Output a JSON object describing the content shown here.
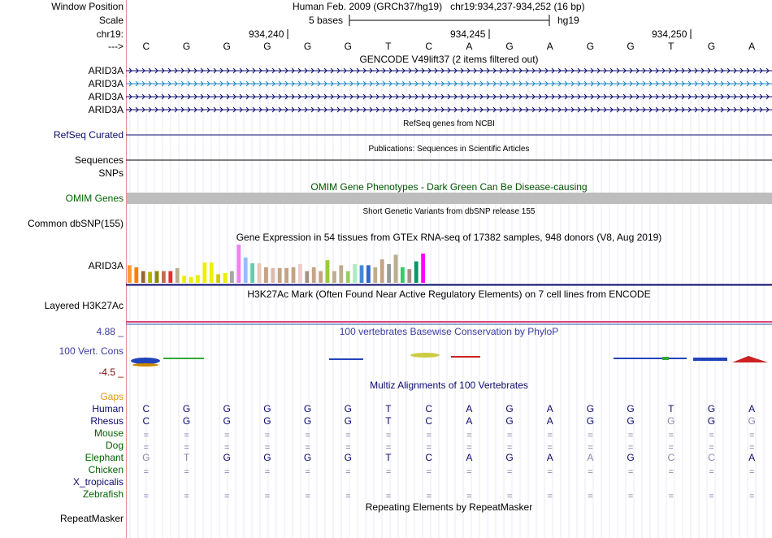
{
  "header": {
    "window_position_label": "Window Position",
    "scale_label": "Scale",
    "chrom_label": "chr19:",
    "strand_label": "--->",
    "assembly": "Human Feb. 2009 (GRCh37/hg19)",
    "position": "chr19:934,237-934,252 (16 bp)",
    "scale_text": "5 bases",
    "db": "hg19",
    "ticks": [
      "934,240",
      "934,245",
      "934,250"
    ],
    "bases": [
      "C",
      "G",
      "G",
      "G",
      "G",
      "G",
      "T",
      "C",
      "A",
      "G",
      "A",
      "G",
      "G",
      "T",
      "G",
      "A"
    ]
  },
  "gencode": {
    "title": "GENCODE V49lift37 (2 items filtered out)",
    "items": [
      {
        "label": "ARID3A",
        "color": "#0a0a6e"
      },
      {
        "label": "ARID3A",
        "color": "#1a85c5"
      },
      {
        "label": "ARID3A",
        "color": "#0a0a6e"
      },
      {
        "label": "ARID3A",
        "color": "#0a0a6e"
      }
    ]
  },
  "refseq": {
    "label": "RefSeq Curated",
    "title": "RefSeq genes from NCBI"
  },
  "publications": {
    "label": "Sequences",
    "title": "Publications: Sequences in Scientific Articles"
  },
  "snps": {
    "label": "SNPs"
  },
  "omim": {
    "label": "OMIM Genes",
    "title": "OMIM Gene Phenotypes - Dark Green Can Be Disease-causing"
  },
  "dbsnp": {
    "label": "Common dbSNP(155)",
    "title": "Short Genetic Variants from dbSNP release 155"
  },
  "gtex": {
    "label": "ARID3A",
    "title": "Gene Expression in 54 tissues from GTEx RNA-seq of 17382 samples, 948 donors (V8, Aug 2019)",
    "bars": [
      {
        "color": "#ff9933",
        "value": 0.45
      },
      {
        "color": "#ff7f00",
        "value": 0.4
      },
      {
        "color": "#996633",
        "value": 0.3
      },
      {
        "color": "#b3b300",
        "value": 0.28
      },
      {
        "color": "#8c8c00",
        "value": 0.3
      },
      {
        "color": "#c76b53",
        "value": 0.3
      },
      {
        "color": "#e62e2e",
        "value": 0.3
      },
      {
        "color": "#bcae8c",
        "value": 0.38
      },
      {
        "color": "#eeee00",
        "value": 0.18
      },
      {
        "color": "#eeee00",
        "value": 0.15
      },
      {
        "color": "#eeee00",
        "value": 0.2
      },
      {
        "color": "#eeee00",
        "value": 0.52
      },
      {
        "color": "#eeee00",
        "value": 0.52
      },
      {
        "color": "#cccc00",
        "value": 0.22
      },
      {
        "color": "#eeee00",
        "value": 0.25
      },
      {
        "color": "#a6a6a6",
        "value": 0.3
      },
      {
        "color": "#ee82ee",
        "value": 0.98
      },
      {
        "color": "#99bbff",
        "value": 0.65
      },
      {
        "color": "#66cdaa",
        "value": 0.5
      },
      {
        "color": "#e8c8b8",
        "value": 0.5
      },
      {
        "color": "#c4a484",
        "value": 0.4
      },
      {
        "color": "#ddbbaa",
        "value": 0.38
      },
      {
        "color": "#c4a484",
        "value": 0.38
      },
      {
        "color": "#c4a484",
        "value": 0.38
      },
      {
        "color": "#c4a484",
        "value": 0.4
      },
      {
        "color": "#eecccc",
        "value": 0.48
      },
      {
        "color": "#a49284",
        "value": 0.3
      },
      {
        "color": "#c4a484",
        "value": 0.4
      },
      {
        "color": "#c4a484",
        "value": 0.3
      },
      {
        "color": "#99cc33",
        "value": 0.58
      },
      {
        "color": "#bcae8c",
        "value": 0.3
      },
      {
        "color": "#bcae8c",
        "value": 0.45
      },
      {
        "color": "#99cc66",
        "value": 0.3
      },
      {
        "color": "#aaeebb",
        "value": 0.48
      },
      {
        "color": "#4488dd",
        "value": 0.45
      },
      {
        "color": "#3366cc",
        "value": 0.45
      },
      {
        "color": "#bcae8c",
        "value": 0.4
      },
      {
        "color": "#c4a484",
        "value": 0.6
      },
      {
        "color": "#999999",
        "value": 0.48
      },
      {
        "color": "#bcae8c",
        "value": 0.72
      },
      {
        "color": "#33cc66",
        "value": 0.4
      },
      {
        "color": "#a49284",
        "value": 0.35
      },
      {
        "color": "#009966",
        "value": 0.55
      },
      {
        "color": "#ff00ff",
        "value": 0.75
      }
    ]
  },
  "h3k27ac": {
    "label": "Layered H3K27Ac",
    "title": "H3K27Ac Mark (Often Found Near Active Regulatory Elements) on 7 cell lines from ENCODE"
  },
  "conservation": {
    "label": "100 Vert. Cons",
    "max": "4.88 _",
    "min": "-4.5 _",
    "title": "100 vertebrates Basewise Conservation by PhyloP"
  },
  "multiz": {
    "title": "Multiz Alignments of 100 Vertebrates",
    "species": [
      {
        "name": "Gaps",
        "color": "#e09a00",
        "row": "",
        "gray": []
      },
      {
        "name": "Human",
        "color": "#0a0a6e",
        "row": "CGGGGGTCAGAGGTGA",
        "gray": []
      },
      {
        "name": "Rhesus",
        "color": "#0a0a6e",
        "row": "CGGGGGTCAGAGGGGG",
        "gray": [
          13,
          15
        ]
      },
      {
        "name": "Mouse",
        "color": "#006400",
        "row": "================",
        "gray": []
      },
      {
        "name": "Dog",
        "color": "#006400",
        "row": "================",
        "gray": []
      },
      {
        "name": "Elephant",
        "color": "#006400",
        "row": "GTGGGGTCAGAAGCCA",
        "gray": [
          0,
          1,
          11,
          13,
          14
        ]
      },
      {
        "name": "Chicken",
        "color": "#006400",
        "row": "================",
        "gray": []
      },
      {
        "name": "X_tropicalis",
        "color": "#0a0a6e",
        "row": "",
        "gray": []
      },
      {
        "name": "Zebrafish",
        "color": "#006400",
        "row": "================",
        "gray": []
      }
    ]
  },
  "repeatmasker": {
    "label": "RepeatMasker",
    "title": "Repeating Elements by RepeatMasker"
  }
}
